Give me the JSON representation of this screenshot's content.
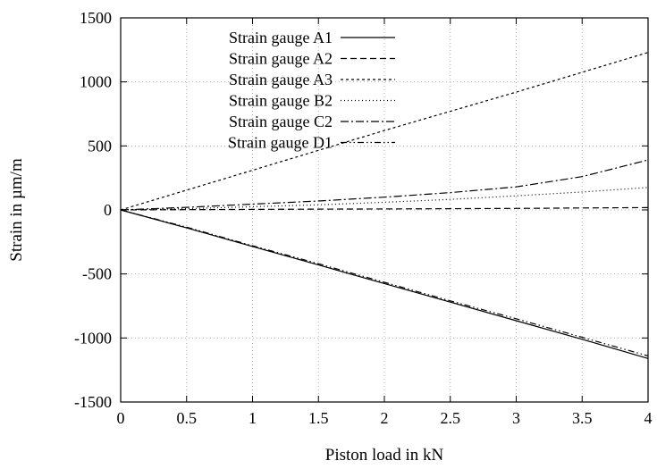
{
  "chart_data": {
    "type": "line",
    "title": "",
    "xlabel": "Piston load in kN",
    "ylabel": "Strain in µm/m",
    "xlim": [
      0,
      4
    ],
    "ylim": [
      -1500,
      1500
    ],
    "xticks": [
      0,
      0.5,
      1,
      1.5,
      2,
      2.5,
      3,
      3.5,
      4
    ],
    "xtick_labels": [
      "0",
      "0.5",
      "1",
      "1.5",
      "2",
      "2.5",
      "3",
      "3.5",
      "4"
    ],
    "yticks": [
      -1500,
      -1000,
      -500,
      0,
      500,
      1000,
      1500
    ],
    "ytick_labels": [
      "-1500",
      "-1000",
      "-500",
      "0",
      "500",
      "1000",
      "1500"
    ],
    "grid": true,
    "legend_position": "top-left",
    "series": [
      {
        "name": "Strain gauge A1",
        "dash": "solid",
        "x": [
          0,
          0.5,
          1,
          1.5,
          2,
          2.5,
          3,
          3.5,
          4
        ],
        "y": [
          0,
          -140,
          -285,
          -430,
          -575,
          -720,
          -865,
          -1010,
          -1160
        ]
      },
      {
        "name": "Strain gauge A2",
        "dash": "dashed",
        "x": [
          0,
          0.5,
          1,
          1.5,
          2,
          2.5,
          3,
          3.5,
          4
        ],
        "y": [
          0,
          2,
          4,
          6,
          8,
          10,
          12,
          15,
          18
        ]
      },
      {
        "name": "Strain gauge A3",
        "dash": "short-dash",
        "x": [
          0,
          0.5,
          1,
          1.5,
          2,
          2.5,
          3,
          3.5,
          4
        ],
        "y": [
          0,
          155,
          310,
          465,
          620,
          770,
          920,
          1075,
          1230
        ]
      },
      {
        "name": "Strain gauge B2",
        "dash": "dotted",
        "x": [
          0,
          0.5,
          1,
          1.5,
          2,
          2.5,
          3,
          3.5,
          4
        ],
        "y": [
          0,
          10,
          25,
          40,
          60,
          82,
          110,
          140,
          175
        ]
      },
      {
        "name": "Strain gauge C2",
        "dash": "dash-dot",
        "x": [
          0,
          0.5,
          1,
          1.5,
          2,
          2.5,
          3,
          3.5,
          4
        ],
        "y": [
          0,
          20,
          45,
          70,
          100,
          135,
          180,
          260,
          390
        ]
      },
      {
        "name": "Strain gauge D1",
        "dash": "dash-dot-dot",
        "x": [
          0,
          0.5,
          1,
          1.5,
          2,
          2.5,
          3,
          3.5,
          4
        ],
        "y": [
          0,
          -135,
          -280,
          -420,
          -565,
          -710,
          -850,
          -995,
          -1140
        ]
      }
    ]
  }
}
